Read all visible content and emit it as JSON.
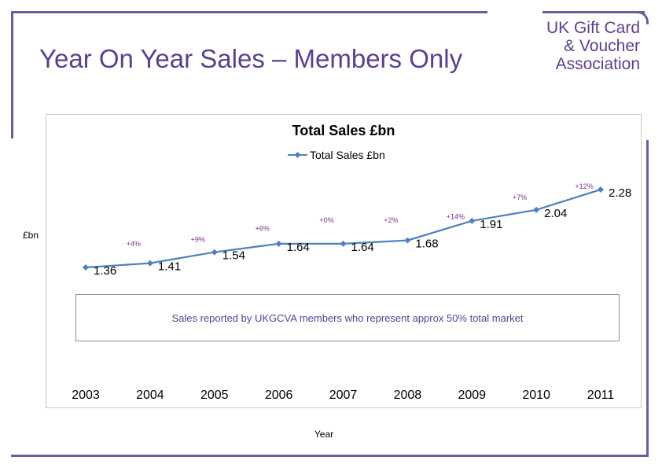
{
  "slide": {
    "title": "Year On Year Sales – Members Only",
    "logo_lines": [
      "UK Gift Card",
      "& Voucher",
      "Association"
    ],
    "note": "Sales reported by UKGCVA members who represent approx 50% total market"
  },
  "colors": {
    "accent": "#5b3f8f",
    "frame": "#6b5c9e",
    "line": "#4f81bd",
    "growth_label": "#7a2e8e"
  },
  "chart_data": {
    "type": "line",
    "title": "Total Sales £bn",
    "xlabel": "Year",
    "ylabel": "£bn",
    "x": [
      "2003",
      "2004",
      "2005",
      "2006",
      "2007",
      "2008",
      "2009",
      "2010",
      "2011"
    ],
    "series": [
      {
        "name": "Total Sales £bn",
        "values": [
          1.36,
          1.41,
          1.54,
          1.64,
          1.64,
          1.68,
          1.91,
          2.04,
          2.28
        ]
      }
    ],
    "value_labels": [
      "1.36",
      "1.41",
      "1.54",
      "1.64",
      "1.64",
      "1.68",
      "1.91",
      "2.04",
      "2.28"
    ],
    "growth_labels": [
      "+4%",
      "+9%",
      "+6%",
      "+0%",
      "+2%",
      "+14%",
      "+7%",
      "+12%"
    ],
    "legend": "top",
    "grid": false
  }
}
